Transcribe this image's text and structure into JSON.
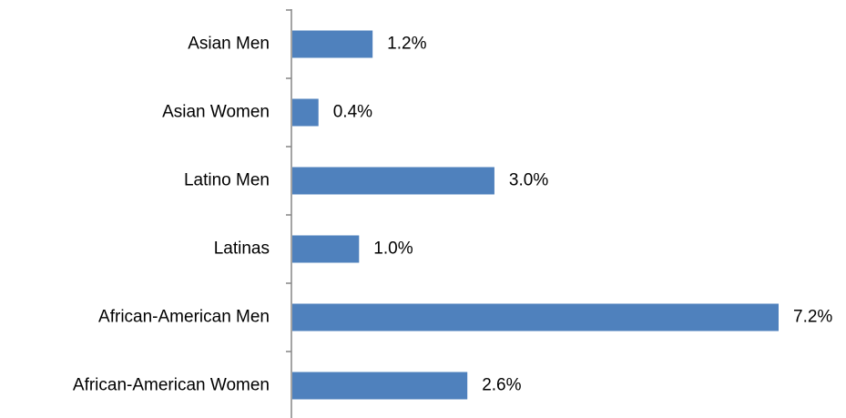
{
  "chart_data": {
    "type": "bar",
    "orientation": "horizontal",
    "categories": [
      "Asian Men",
      "Asian Women",
      "Latino Men",
      "Latinas",
      "African-American Men",
      "African-American Women"
    ],
    "values": [
      1.2,
      0.4,
      3.0,
      1.0,
      7.2,
      2.6
    ],
    "value_labels": [
      "1.2%",
      "0.4%",
      "3.0%",
      "1.0%",
      "7.2%",
      "2.6%"
    ],
    "color": "#4f81bd"
  }
}
